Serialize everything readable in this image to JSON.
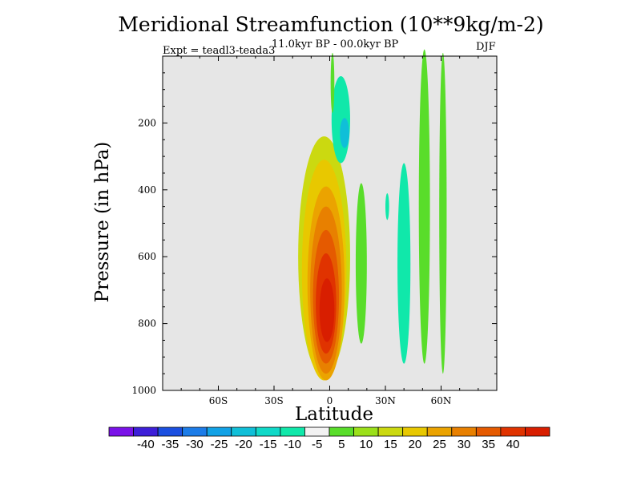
{
  "colors": {
    "background_field": "#e6e6e6",
    "palette": [
      "#7a12e8",
      "#3d1fd8",
      "#1b4fe0",
      "#1c7ce8",
      "#12a2e6",
      "#10bfd8",
      "#10d9c8",
      "#10e8aa",
      "#f2f2f2",
      "#59dd2a",
      "#9be01a",
      "#cbd910",
      "#e8c800",
      "#eba300",
      "#e88000",
      "#e55a00",
      "#e03300",
      "#d81e00"
    ]
  },
  "chart_data": {
    "type": "contour",
    "title": "Meridional Streamfunction (10**9kg/m-2)",
    "subtitle": "11.0kyr BP - 00.0kyr BP",
    "experiment": "Expt = teadl3-teada3",
    "season": "DJF",
    "xlabel": "Latitude",
    "ylabel": "Pressure (in hPa)",
    "xlim": [
      -90,
      90
    ],
    "ylim": [
      1000,
      0
    ],
    "xticks": [
      -60,
      -30,
      0,
      30,
      60
    ],
    "xtick_labels": [
      "60S",
      "30S",
      "0",
      "30N",
      "60N"
    ],
    "yticks": [
      200,
      400,
      600,
      800,
      1000
    ],
    "ytick_labels": [
      "200",
      "400",
      "600",
      "800",
      "1000"
    ],
    "levels": [
      -40,
      -35,
      -30,
      -25,
      -20,
      -15,
      -10,
      -5,
      5,
      10,
      15,
      20,
      25,
      30,
      35,
      40
    ],
    "level_labels": [
      "-40",
      "-35",
      "-30",
      "-25",
      "-20",
      "-15",
      "-10",
      "-5",
      "5",
      "10",
      "15",
      "20",
      "25",
      "30",
      "35",
      "40"
    ],
    "features": [
      {
        "name": "positive cell",
        "lat_center": -2,
        "lat_span": [
          -12,
          10
        ],
        "pressure_span": [
          250,
          980
        ],
        "max_value": 40
      },
      {
        "name": "negative cell upper",
        "lat_center": 6,
        "pressure_span": [
          60,
          320
        ],
        "min_value": -15
      },
      {
        "name": "negative band",
        "lat_center": 40,
        "pressure_span": [
          320,
          920
        ],
        "min_value": -10
      },
      {
        "name": "positive band north",
        "lat_center": 52,
        "pressure_span": [
          0,
          960
        ],
        "max_value": 5
      },
      {
        "name": "positive band 60N",
        "lat_center": 61,
        "pressure_span": [
          0,
          950
        ],
        "max_value": 5
      }
    ]
  }
}
